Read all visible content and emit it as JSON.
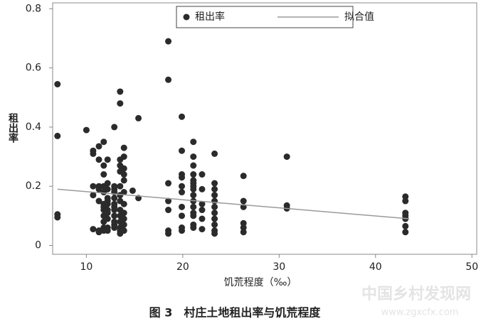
{
  "chart_data": {
    "type": "scatter",
    "caption": "图 3　村庄土地租出率与饥荒程度",
    "xlabel": "饥荒程度（‰）",
    "ylabel": "租出率",
    "legend": "top",
    "xlim": [
      6.5,
      50.5
    ],
    "xticks": [
      10,
      20,
      30,
      40,
      50
    ],
    "ylim": [
      -0.03,
      0.82
    ],
    "yticks": [
      0,
      0.2,
      0.4,
      0.6,
      0.8
    ],
    "series": [
      {
        "name": "租出率",
        "color": "#2b2b2b",
        "kind": "points",
        "x": [
          7,
          7,
          7,
          7,
          10,
          10.7,
          10.7,
          10.7,
          10.7,
          10.7,
          11.3,
          11.3,
          11.3,
          11.3,
          11.3,
          11.3,
          11.3,
          11.8,
          11.8,
          11.8,
          11.8,
          11.8,
          11.8,
          11.8,
          11.8,
          11.8,
          11.8,
          11.8,
          11.8,
          12.2,
          12.2,
          12.2,
          12.2,
          12.2,
          12.2,
          12.2,
          12.2,
          12.2,
          12.2,
          12.2,
          12.9,
          12.9,
          12.9,
          12.9,
          12.9,
          12.9,
          12.9,
          12.9,
          12.9,
          12.9,
          12.9,
          12.9,
          13.5,
          13.5,
          13.5,
          13.5,
          13.5,
          13.5,
          13.5,
          13.5,
          13.5,
          13.5,
          13.5,
          13.5,
          13.5,
          13.5,
          13.9,
          13.9,
          13.9,
          13.9,
          13.9,
          13.9,
          13.9,
          13.9,
          13.9,
          13.9,
          13.9,
          14.8,
          15.4,
          15.4,
          18.5,
          18.5,
          18.5,
          18.5,
          18.5,
          18.5,
          18.5,
          19.9,
          19.9,
          19.9,
          19.9,
          19.9,
          19.9,
          19.9,
          19.9,
          19.9,
          19.9,
          21.1,
          21.1,
          21.1,
          21.1,
          21.1,
          21.1,
          21.1,
          21.1,
          21.1,
          21.1,
          21.1,
          21.1,
          21.1,
          21.1,
          21.1,
          22,
          22,
          22,
          22,
          22,
          22,
          23.3,
          23.3,
          23.3,
          23.3,
          23.3,
          23.3,
          23.3,
          23.3,
          23.3,
          23.3,
          23.3,
          26.3,
          26.3,
          26.3,
          26.3,
          26.3,
          26.3,
          30.8,
          30.8,
          30.8,
          43.1,
          43.1,
          43.1,
          43.1,
          43.1,
          43.1,
          43.1
        ],
        "values": [
          0.545,
          0.37,
          0.105,
          0.095,
          0.39,
          0.32,
          0.31,
          0.2,
          0.17,
          0.055,
          0.335,
          0.29,
          0.2,
          0.19,
          0.15,
          0.05,
          0.045,
          0.35,
          0.27,
          0.24,
          0.2,
          0.18,
          0.14,
          0.13,
          0.12,
          0.1,
          0.08,
          0.06,
          0.05,
          0.29,
          0.21,
          0.19,
          0.16,
          0.15,
          0.14,
          0.12,
          0.11,
          0.09,
          0.06,
          0.05,
          0.4,
          0.2,
          0.19,
          0.18,
          0.16,
          0.14,
          0.13,
          0.12,
          0.1,
          0.08,
          0.07,
          0.06,
          0.52,
          0.48,
          0.29,
          0.27,
          0.25,
          0.2,
          0.17,
          0.15,
          0.12,
          0.1,
          0.08,
          0.06,
          0.05,
          0.04,
          0.33,
          0.3,
          0.26,
          0.24,
          0.22,
          0.18,
          0.14,
          0.11,
          0.09,
          0.07,
          0.05,
          0.185,
          0.43,
          0.16,
          0.69,
          0.56,
          0.21,
          0.15,
          0.12,
          0.05,
          0.04,
          0.435,
          0.32,
          0.24,
          0.23,
          0.2,
          0.18,
          0.13,
          0.1,
          0.06,
          0.05,
          0.35,
          0.3,
          0.27,
          0.24,
          0.22,
          0.21,
          0.2,
          0.19,
          0.17,
          0.15,
          0.13,
          0.11,
          0.1,
          0.07,
          0.06,
          0.24,
          0.19,
          0.14,
          0.12,
          0.09,
          0.055,
          0.31,
          0.21,
          0.19,
          0.17,
          0.15,
          0.13,
          0.11,
          0.09,
          0.07,
          0.05,
          0.04,
          0.235,
          0.15,
          0.13,
          0.075,
          0.06,
          0.045,
          0.3,
          0.135,
          0.125,
          0.165,
          0.15,
          0.11,
          0.1,
          0.09,
          0.065,
          0.045
        ]
      },
      {
        "name": "拟合值",
        "color": "#9a9a9a",
        "kind": "line",
        "x": [
          7,
          43.5
        ],
        "values": [
          0.19,
          0.09
        ]
      }
    ]
  },
  "watermark": {
    "text": "中国乡村发现网",
    "url": "www.zgxcfx.com"
  }
}
